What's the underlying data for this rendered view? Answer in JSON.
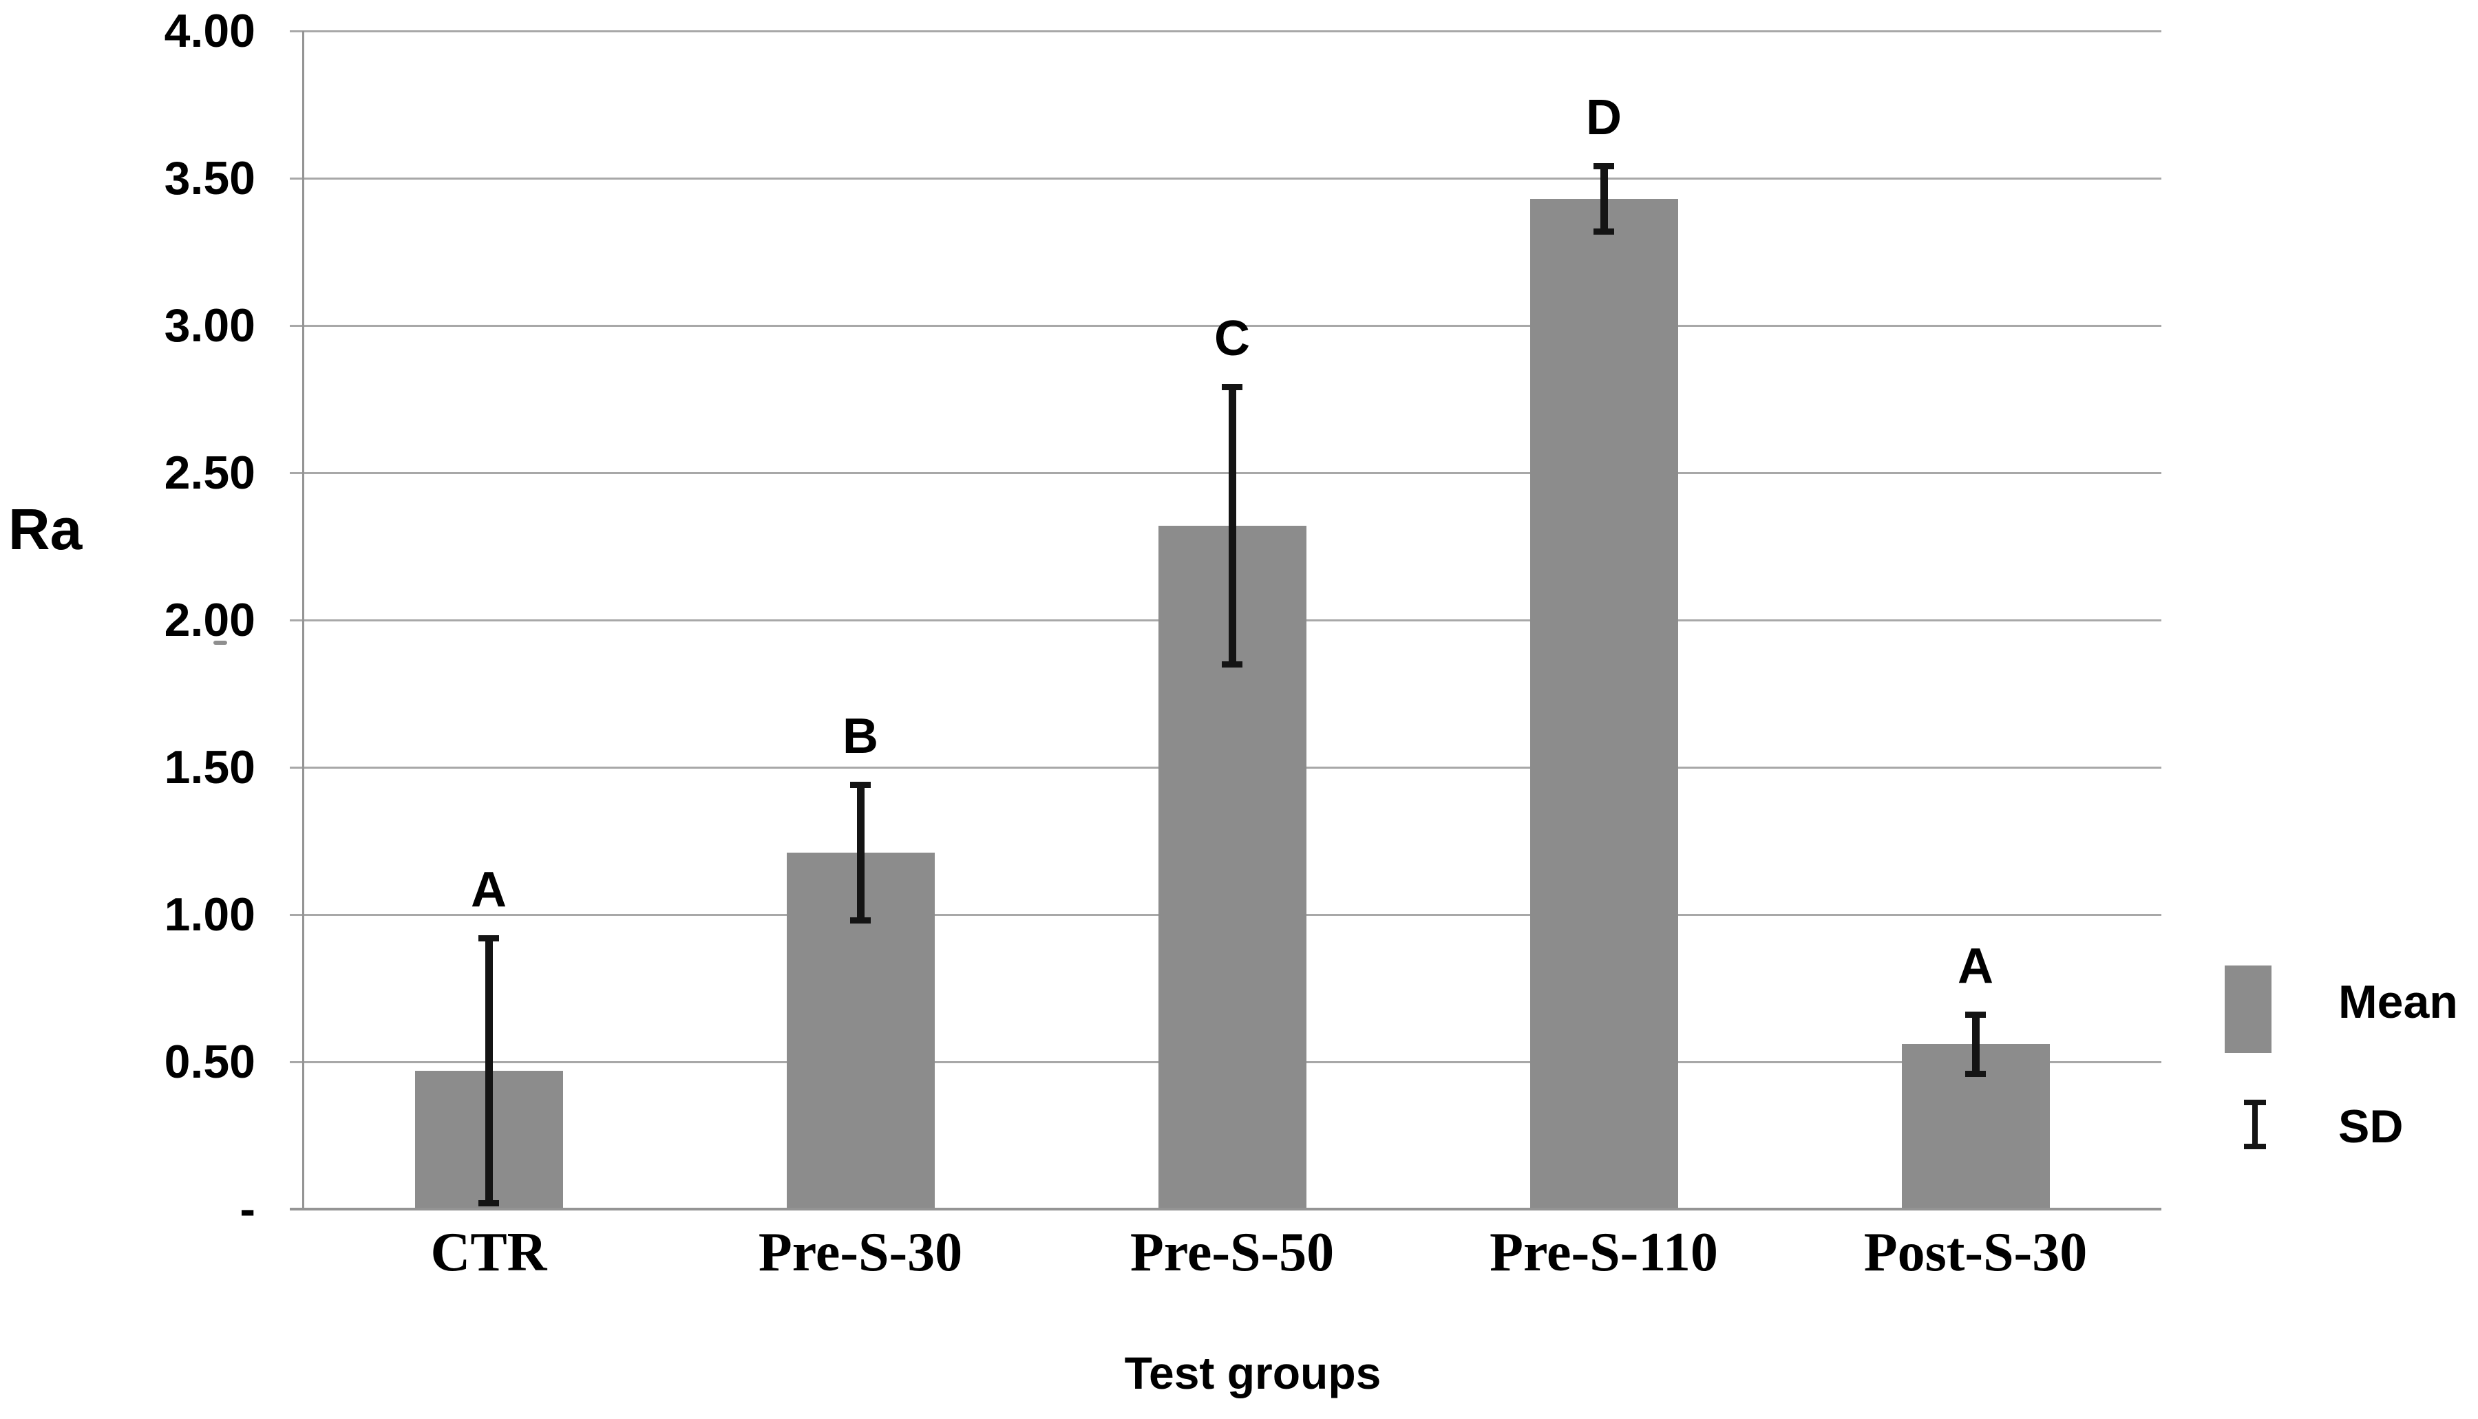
{
  "figure": {
    "ylabel": "Ra",
    "xlabel": "Test groups"
  },
  "legend": {
    "mean_label": "Mean",
    "sd_label": "SD",
    "mean_swatch_icon": "gray-rectangle-icon",
    "sd_icon": "error-bar-icon"
  },
  "colors": {
    "bar": "#8c8c8c",
    "gridline": "#a8a8a8",
    "axis": "#949494",
    "error_bar": "#141414",
    "text": "#000000",
    "background": "#ffffff"
  },
  "chart_data": {
    "type": "bar",
    "title": "",
    "xlabel": "Test groups",
    "ylabel": "Ra",
    "categories": [
      "CTR",
      "Pre-S-30",
      "Pre-S-50",
      "Pre-S-110",
      "Post-S-30"
    ],
    "series": [
      {
        "name": "Mean",
        "values": [
          0.47,
          1.21,
          2.32,
          3.43,
          0.56
        ]
      }
    ],
    "error_bars": {
      "name": "SD",
      "values": [
        0.45,
        0.23,
        0.47,
        0.11,
        0.1
      ]
    },
    "significance_letters": [
      "A",
      "B",
      "C",
      "D",
      "A"
    ],
    "yticks": [
      {
        "value": 4.0,
        "label": "4.00"
      },
      {
        "value": 3.5,
        "label": "3.50"
      },
      {
        "value": 3.0,
        "label": "3.00"
      },
      {
        "value": 2.5,
        "label": "2.50"
      },
      {
        "value": 2.0,
        "label": "2.00"
      },
      {
        "value": 1.5,
        "label": "1.50"
      },
      {
        "value": 1.0,
        "label": "1.00"
      },
      {
        "value": 0.5,
        "label": "0.50"
      },
      {
        "value": 0.0,
        "label": "-"
      }
    ],
    "ylim": [
      0,
      4
    ],
    "grid": true,
    "legend_position": "right"
  }
}
